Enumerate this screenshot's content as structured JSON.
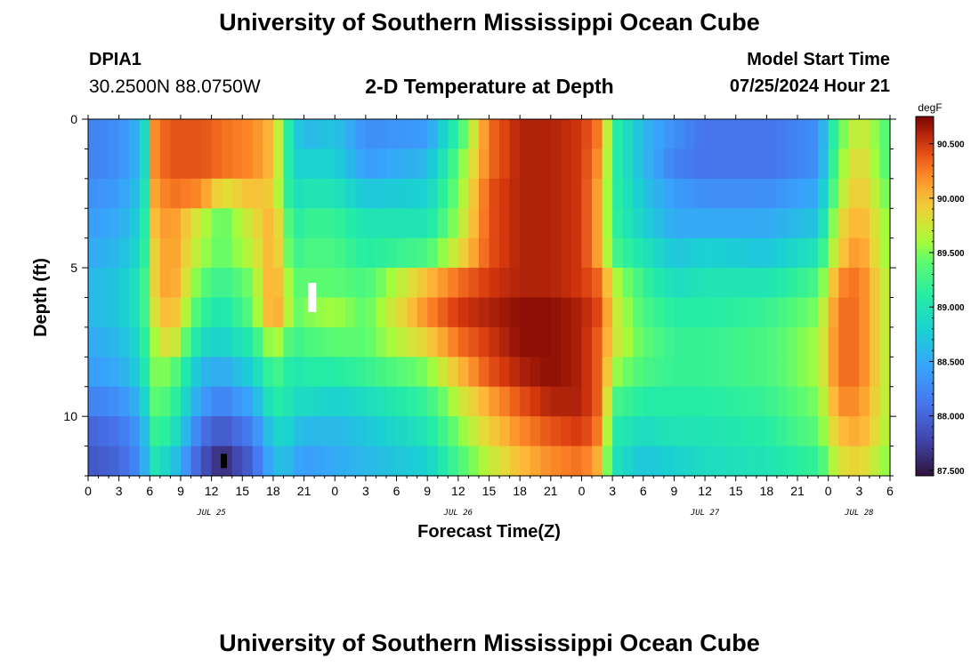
{
  "header": {
    "title": "University of Southern Mississippi Ocean Cube",
    "station_id": "DPIA1",
    "coords": "30.2500N  88.0750W",
    "chart_title": "2-D Temperature at Depth",
    "start_label": "Model Start Time",
    "start_value": "07/25/2024 Hour 21"
  },
  "footer": {
    "title": "University of Southern Mississippi Ocean Cube"
  },
  "chart_data": {
    "type": "heatmap",
    "title": "2-D Temperature at Depth",
    "xlabel": "Forecast Time(Z)",
    "ylabel": "Depth (ft)",
    "x_tick_labels": [
      "0",
      "3",
      "6",
      "9",
      "12",
      "15",
      "18",
      "21",
      "0",
      "3",
      "6",
      "9",
      "12",
      "15",
      "18",
      "21",
      "0",
      "3",
      "6",
      "9",
      "12",
      "15",
      "18",
      "21",
      "0",
      "3",
      "6"
    ],
    "x_date_labels": [
      {
        "label": "JUL 25",
        "hour": 12
      },
      {
        "label": "JUL 26",
        "hour": 36
      },
      {
        "label": "JUL 27",
        "hour": 60
      },
      {
        "label": "JUL 28",
        "hour": 75
      }
    ],
    "x_range_hours": [
      0,
      78
    ],
    "y_range_ft": [
      0,
      12
    ],
    "y_major_ticks": [
      0,
      5,
      10
    ],
    "y_minor_step": 1,
    "colorbar": {
      "unit": "degF",
      "min": 87.45,
      "max": 90.75,
      "tick_values": [
        87.5,
        88.0,
        88.5,
        89.0,
        89.5,
        90.0,
        90.5
      ],
      "tick_labels": [
        "87.500",
        "88.000",
        "88.500",
        "89.000",
        "89.500",
        "90.000",
        "90.500"
      ]
    },
    "grid": {
      "rows_depth_ft": 12,
      "cols_hours": 78,
      "row_keyframes_comment_free": true,
      "keyframes": [
        {
          "x": [
            0,
            3,
            5,
            6,
            6.5,
            8,
            11,
            13,
            16,
            18,
            19,
            20,
            21,
            24,
            27,
            33,
            36,
            39,
            42,
            45,
            48,
            50,
            51,
            54,
            57,
            60,
            66,
            71,
            73,
            75,
            78
          ],
          "v": [
            88.2,
            88.3,
            88.6,
            89.2,
            90.2,
            90.4,
            90.4,
            90.3,
            90.2,
            90.0,
            89.4,
            88.8,
            88.6,
            88.7,
            88.3,
            88.4,
            89.2,
            90.3,
            90.6,
            90.6,
            90.5,
            90.2,
            89.2,
            88.6,
            88.3,
            88.1,
            88.1,
            88.3,
            89.4,
            89.8,
            89.3
          ]
        },
        {
          "x": [
            0,
            3,
            5,
            6,
            6.5,
            8,
            11,
            13,
            16,
            18,
            19,
            20,
            21,
            24,
            27,
            33,
            36,
            39,
            42,
            45,
            48,
            50,
            51,
            54,
            57,
            60,
            66,
            71,
            73,
            75,
            78
          ],
          "v": [
            88.2,
            88.3,
            88.6,
            89.2,
            90.2,
            90.4,
            90.4,
            90.3,
            90.2,
            90.0,
            89.4,
            88.8,
            88.8,
            88.8,
            88.4,
            88.6,
            89.4,
            90.3,
            90.6,
            90.6,
            90.5,
            90.1,
            89.2,
            88.6,
            88.2,
            88.1,
            88.1,
            88.3,
            89.5,
            89.9,
            89.3
          ]
        },
        {
          "x": [
            0,
            3,
            5,
            6,
            6.5,
            8,
            11,
            13,
            16,
            18,
            19,
            20,
            21,
            24,
            27,
            33,
            36,
            39,
            42,
            45,
            48,
            50,
            51,
            54,
            57,
            60,
            66,
            71,
            73,
            75,
            78
          ],
          "v": [
            88.3,
            88.4,
            88.7,
            89.3,
            90.1,
            90.3,
            90.2,
            89.8,
            90.0,
            89.9,
            89.4,
            88.9,
            89.0,
            89.0,
            88.7,
            88.8,
            89.5,
            90.4,
            90.6,
            90.6,
            90.5,
            90.0,
            89.2,
            88.7,
            88.4,
            88.3,
            88.3,
            88.5,
            89.6,
            90.0,
            89.4
          ]
        },
        {
          "x": [
            0,
            3,
            5,
            6,
            6.5,
            8,
            11,
            13,
            16,
            18,
            19,
            20,
            21,
            24,
            27,
            33,
            36,
            39,
            42,
            45,
            48,
            50,
            51,
            54,
            57,
            60,
            66,
            71,
            73,
            75,
            78
          ],
          "v": [
            88.4,
            88.5,
            88.8,
            89.4,
            90.0,
            90.2,
            89.7,
            89.4,
            89.8,
            90.1,
            89.6,
            89.1,
            89.2,
            89.2,
            89.0,
            89.0,
            89.6,
            90.4,
            90.6,
            90.6,
            90.5,
            90.0,
            89.2,
            88.8,
            88.5,
            88.5,
            88.5,
            88.7,
            89.8,
            90.1,
            89.5
          ]
        },
        {
          "x": [
            0,
            3,
            5,
            6,
            6.5,
            8,
            11,
            13,
            16,
            18,
            19,
            20,
            21,
            24,
            27,
            33,
            36,
            39,
            42,
            45,
            48,
            50,
            51,
            54,
            57,
            60,
            66,
            71,
            73,
            75,
            78
          ],
          "v": [
            88.5,
            88.6,
            88.9,
            89.4,
            89.9,
            90.2,
            89.6,
            89.4,
            89.7,
            90.1,
            89.7,
            89.2,
            89.3,
            89.3,
            89.1,
            89.3,
            89.8,
            90.4,
            90.6,
            90.6,
            90.5,
            90.0,
            89.3,
            89.0,
            88.7,
            88.8,
            88.7,
            89.0,
            89.9,
            90.2,
            89.5
          ]
        },
        {
          "x": [
            0,
            3,
            5,
            6,
            6.5,
            8,
            11,
            13,
            16,
            18,
            19,
            20,
            21,
            24,
            27,
            33,
            36,
            39,
            42,
            45,
            48,
            50,
            51,
            54,
            57,
            60,
            66,
            71,
            73,
            75,
            78
          ],
          "v": [
            88.6,
            88.7,
            89.0,
            89.5,
            89.9,
            90.2,
            89.4,
            89.2,
            89.5,
            90.2,
            89.8,
            89.4,
            89.4,
            89.4,
            89.3,
            90.0,
            90.3,
            90.5,
            90.6,
            90.6,
            90.5,
            90.3,
            89.7,
            89.2,
            88.9,
            89.0,
            89.0,
            89.3,
            90.2,
            90.3,
            89.6
          ]
        },
        {
          "x": [
            0,
            3,
            5,
            6,
            6.5,
            8,
            11,
            13,
            16,
            18,
            19,
            20,
            21,
            24,
            27,
            33,
            36,
            39,
            42,
            45,
            48,
            50,
            51,
            54,
            57,
            60,
            66,
            71,
            73,
            75,
            78
          ],
          "v": [
            88.6,
            88.7,
            89.0,
            89.5,
            89.8,
            90.1,
            89.2,
            89.0,
            89.4,
            90.2,
            89.9,
            89.4,
            89.5,
            89.6,
            89.4,
            90.2,
            90.5,
            90.6,
            90.7,
            90.7,
            90.6,
            90.4,
            89.8,
            89.3,
            89.1,
            89.1,
            89.2,
            89.5,
            90.3,
            90.3,
            89.6
          ]
        },
        {
          "x": [
            0,
            3,
            5,
            6,
            6.5,
            8,
            11,
            13,
            16,
            18,
            19,
            20,
            21,
            24,
            27,
            33,
            36,
            39,
            42,
            45,
            48,
            50,
            51,
            54,
            57,
            60,
            66,
            71,
            73,
            75,
            78
          ],
          "v": [
            88.5,
            88.6,
            88.9,
            89.4,
            89.6,
            89.9,
            88.9,
            88.8,
            89.1,
            89.7,
            89.5,
            89.2,
            89.3,
            89.4,
            89.4,
            89.9,
            90.3,
            90.5,
            90.7,
            90.7,
            90.6,
            90.3,
            89.8,
            89.4,
            89.2,
            89.2,
            89.3,
            89.6,
            90.3,
            90.3,
            89.6
          ]
        },
        {
          "x": [
            0,
            3,
            5,
            6,
            6.5,
            8,
            11,
            13,
            16,
            18,
            19,
            20,
            21,
            24,
            27,
            33,
            36,
            39,
            42,
            45,
            48,
            50,
            51,
            54,
            57,
            60,
            66,
            71,
            73,
            75,
            78
          ],
          "v": [
            88.4,
            88.5,
            88.8,
            89.3,
            89.5,
            89.5,
            88.6,
            88.5,
            88.8,
            89.3,
            89.2,
            89.0,
            89.1,
            89.1,
            89.2,
            89.5,
            90.0,
            90.4,
            90.6,
            90.7,
            90.6,
            90.3,
            89.6,
            89.3,
            89.2,
            89.2,
            89.3,
            89.6,
            90.3,
            90.3,
            89.6
          ]
        },
        {
          "x": [
            0,
            3,
            5,
            6,
            6.5,
            8,
            11,
            13,
            16,
            18,
            19,
            20,
            21,
            24,
            27,
            33,
            36,
            39,
            42,
            45,
            48,
            50,
            51,
            54,
            57,
            60,
            66,
            71,
            73,
            75,
            78
          ],
          "v": [
            88.2,
            88.3,
            88.6,
            89.1,
            89.4,
            89.3,
            88.4,
            88.2,
            88.5,
            89.1,
            89.1,
            88.9,
            88.9,
            88.8,
            88.9,
            89.2,
            89.7,
            90.1,
            90.4,
            90.6,
            90.6,
            90.3,
            89.3,
            89.1,
            89.1,
            89.1,
            89.2,
            89.5,
            90.2,
            90.2,
            89.6
          ]
        },
        {
          "x": [
            0,
            3,
            5,
            6,
            6.5,
            8,
            11,
            13,
            16,
            18,
            19,
            20,
            21,
            24,
            27,
            33,
            36,
            39,
            42,
            45,
            48,
            50,
            51,
            54,
            57,
            60,
            66,
            71,
            73,
            75,
            78
          ],
          "v": [
            88.0,
            88.1,
            88.4,
            88.9,
            89.2,
            89.1,
            88.1,
            87.9,
            88.2,
            88.8,
            88.9,
            88.7,
            88.6,
            88.6,
            88.7,
            89.0,
            89.5,
            89.9,
            90.2,
            90.4,
            90.5,
            90.2,
            89.1,
            88.9,
            89.0,
            89.0,
            89.1,
            89.4,
            90.0,
            90.1,
            89.6
          ]
        },
        {
          "x": [
            0,
            3,
            5,
            6,
            6.5,
            8,
            11,
            13,
            16,
            18,
            19,
            20,
            21,
            24,
            27,
            33,
            36,
            39,
            42,
            45,
            48,
            50,
            51,
            54,
            57,
            60,
            66,
            71,
            73,
            75,
            78
          ],
          "v": [
            87.9,
            88.0,
            88.3,
            88.8,
            89.0,
            88.8,
            87.9,
            87.6,
            88.0,
            88.6,
            88.7,
            88.5,
            88.4,
            88.5,
            88.6,
            88.8,
            89.3,
            89.7,
            90.0,
            90.2,
            90.3,
            90.0,
            89.0,
            88.7,
            88.8,
            88.9,
            89.0,
            89.2,
            89.8,
            89.9,
            89.5
          ]
        },
        {
          "x": [
            0,
            3,
            5,
            6,
            6.5,
            8,
            11,
            13,
            16,
            18,
            19,
            20,
            21,
            24,
            27,
            33,
            36,
            39,
            42,
            45,
            48,
            50,
            51,
            54,
            57,
            60,
            66,
            71,
            73,
            75,
            78
          ],
          "v": [
            87.8,
            87.9,
            88.2,
            88.7,
            88.9,
            88.6,
            87.7,
            87.5,
            87.9,
            88.5,
            88.6,
            88.4,
            88.3,
            88.4,
            88.5,
            88.7,
            89.2,
            89.6,
            89.9,
            90.1,
            90.2,
            89.8,
            88.6,
            88.4,
            88.5,
            88.7,
            88.9,
            89.1,
            89.6,
            89.7,
            89.4
          ]
        }
      ]
    },
    "markers": [
      {
        "hour": 21.8,
        "depth_ft": 6,
        "color": "#ffffff"
      },
      {
        "hour": 13.2,
        "depth_ft": 11.5,
        "color": "#000000"
      }
    ]
  }
}
